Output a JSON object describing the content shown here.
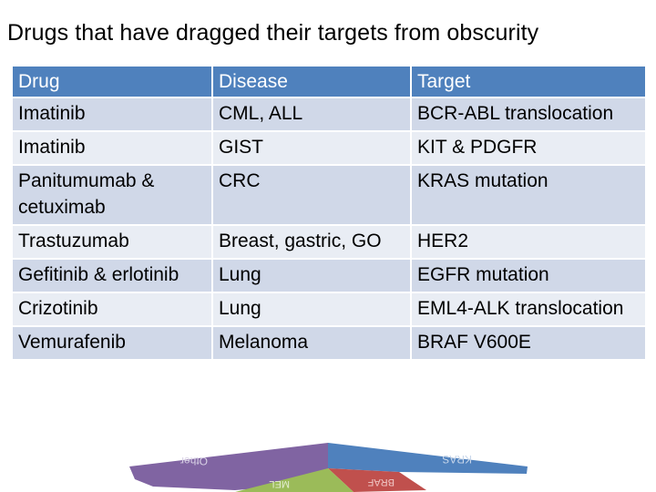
{
  "title": "Drugs that have dragged their targets from obscurity",
  "table": {
    "headers": [
      "Drug",
      "Disease",
      "Target"
    ],
    "rows": [
      [
        "Imatinib",
        "CML, ALL",
        "BCR-ABL translocation"
      ],
      [
        "Imatinib",
        "GIST",
        "KIT & PDGFR"
      ],
      [
        "Panitumumab & cetuximab",
        "CRC",
        "KRAS mutation"
      ],
      [
        "Trastuzumab",
        "Breast, gastric, GO",
        "HER2"
      ],
      [
        "Gefitinib & erlotinib",
        "Lung",
        "EGFR mutation"
      ],
      [
        "Crizotinib",
        "Lung",
        "EML4-ALK translocation"
      ],
      [
        "Vemurafenib",
        "Melanoma",
        "BRAF V600E"
      ]
    ]
  },
  "pie": {
    "labels": [
      "Other",
      "KRAS",
      "BRAF",
      "MEL"
    ],
    "colors": [
      "#8064a2",
      "#4f81bd",
      "#c0504d",
      "#9bbb59"
    ]
  }
}
